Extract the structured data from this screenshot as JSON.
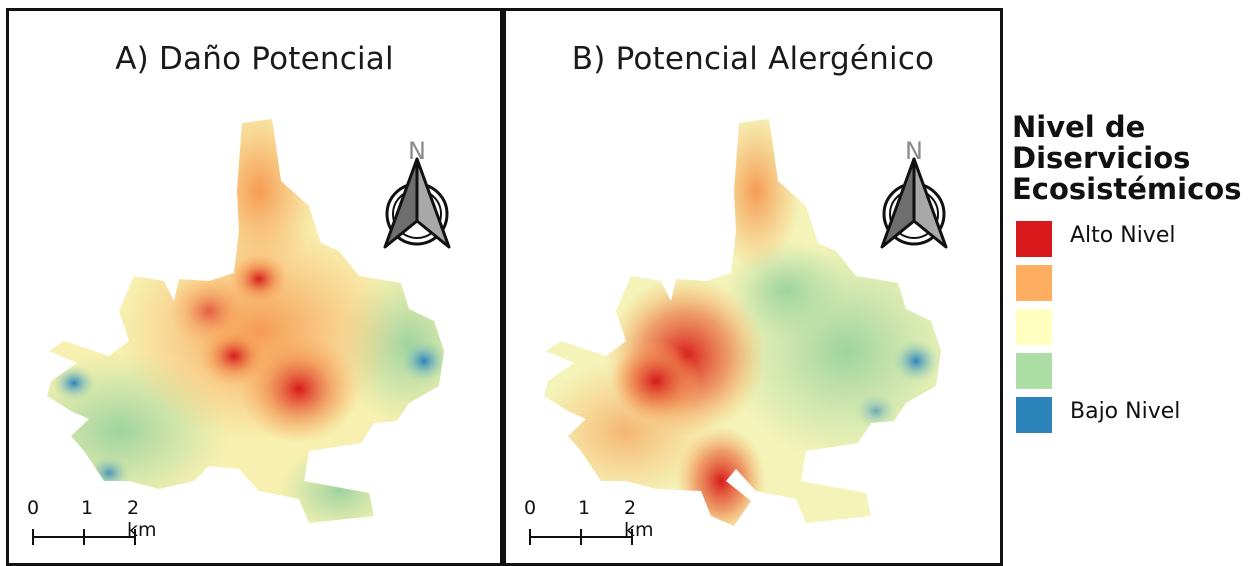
{
  "panels": [
    {
      "title": "A) Daño Potencial"
    },
    {
      "title": "B) Potencial Alergénico"
    }
  ],
  "north_arrow": {
    "label": "N"
  },
  "scalebar": {
    "ticks": [
      "0",
      "1",
      "2 km"
    ]
  },
  "legend": {
    "title_lines": [
      "Nivel de",
      "Diservicios",
      "Ecosistémicos"
    ],
    "classes": [
      {
        "color": "#d7191c",
        "label": "Alto Nivel"
      },
      {
        "color": "#fdae61",
        "label": ""
      },
      {
        "color": "#ffffc0",
        "label": ""
      },
      {
        "color": "#abdda4",
        "label": ""
      },
      {
        "color": "#2b83ba",
        "label": "Bajo Nivel"
      }
    ]
  },
  "colors": {
    "high": "#d7191c",
    "mid_high": "#fdae61",
    "mid": "#ffffc0",
    "mid_low": "#abdda4",
    "low": "#2b83ba"
  }
}
